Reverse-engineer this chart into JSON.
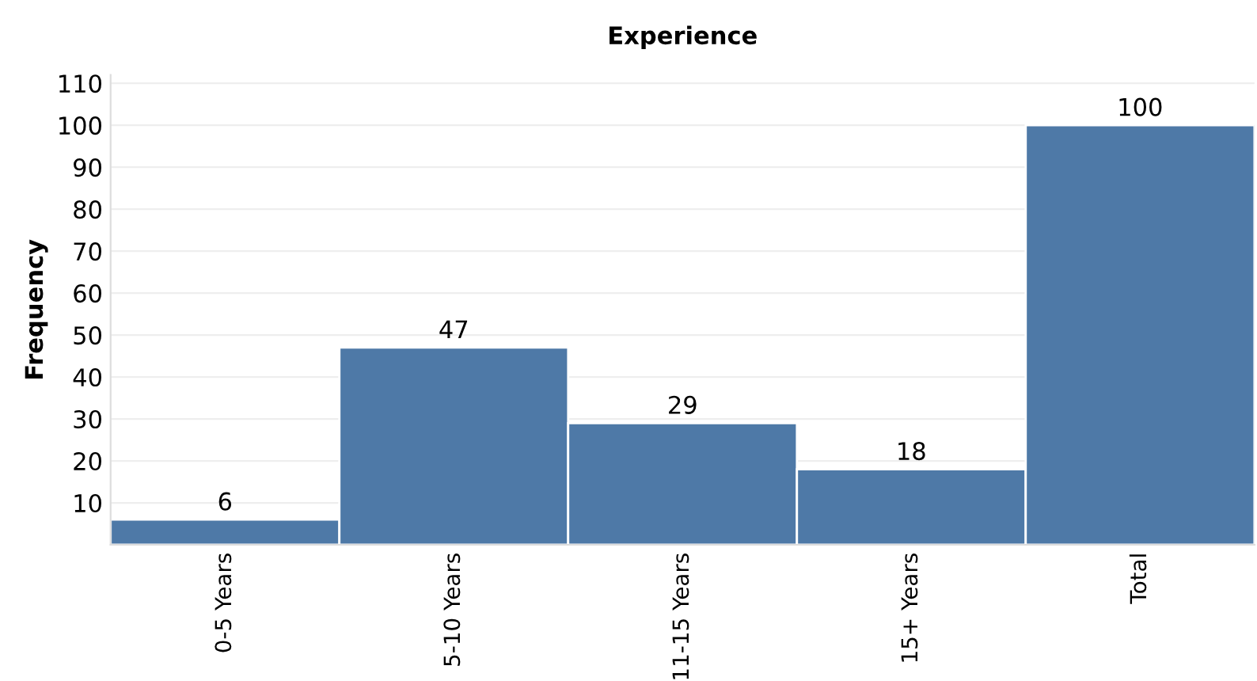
{
  "chart_data": {
    "type": "bar",
    "title": "Experience",
    "ylabel": "Frequency",
    "categories": [
      "0-5 Years",
      "5-10 Years",
      "11-15 Years",
      "15+ Years",
      "Total"
    ],
    "values": [
      6,
      47,
      29,
      18,
      100
    ],
    "color": "#4e79a7",
    "data_labels": true,
    "ylim": [
      0,
      112
    ],
    "yticks": [
      10,
      20,
      30,
      40,
      50,
      60,
      70,
      80,
      90,
      100,
      110
    ],
    "grid": "y"
  }
}
